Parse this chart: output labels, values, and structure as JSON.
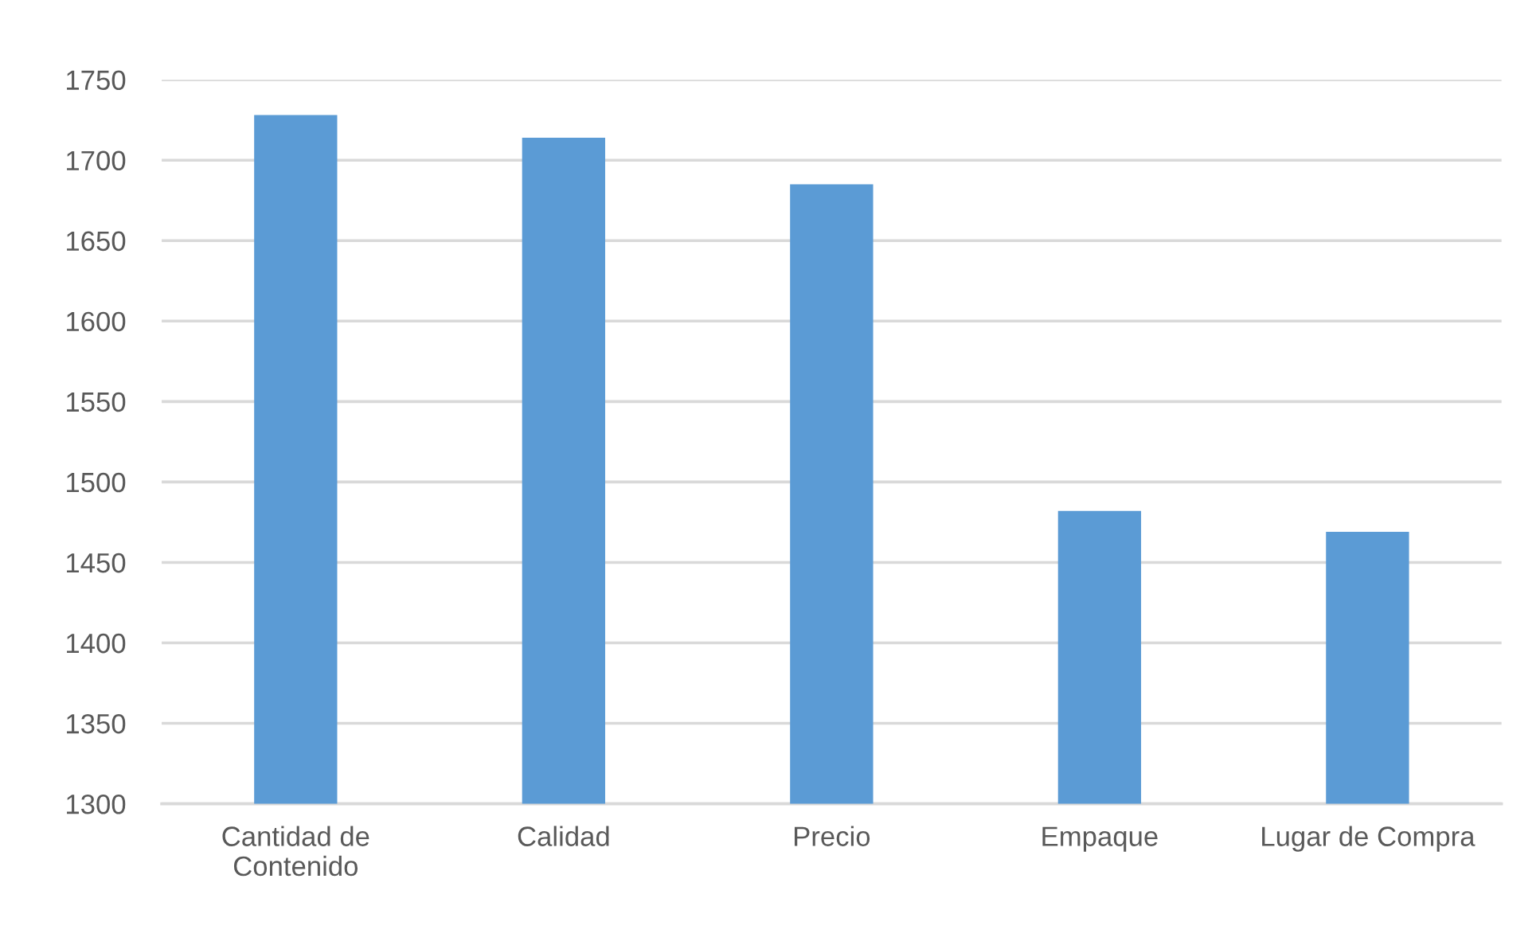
{
  "chart_data": {
    "type": "bar",
    "categories": [
      "Cantidad de\nContenido",
      "Calidad",
      "Precio",
      "Empaque",
      "Lugar de Compra"
    ],
    "values": [
      1728,
      1714,
      1685,
      1482,
      1469
    ],
    "color": "#5b9bd5",
    "ylim": [
      1300,
      1750
    ],
    "yticks": [
      1300,
      1350,
      1400,
      1450,
      1500,
      1550,
      1600,
      1650,
      1700,
      1750
    ],
    "grid": "y"
  }
}
